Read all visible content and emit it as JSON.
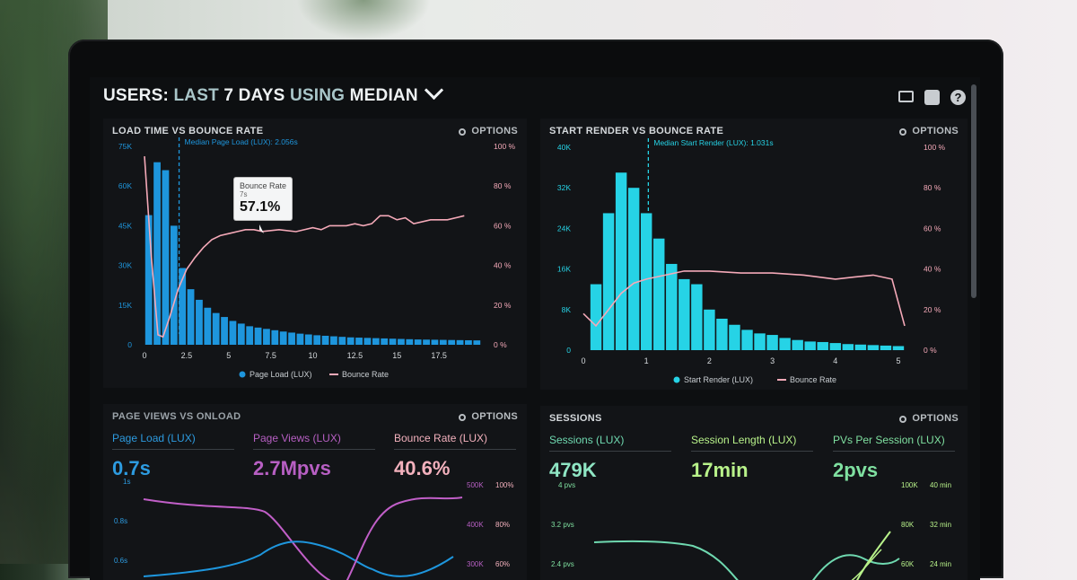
{
  "colors": {
    "blue": "#1e96dd",
    "cyan": "#26d3e6",
    "pink": "#f4a9b8",
    "purple": "#c15fc8",
    "green": "#7fe0a0",
    "lime": "#b8f28a"
  },
  "header": {
    "prefix": "USERS:",
    "w1": "LAST",
    "w2": "7 DAYS",
    "w3": "USING",
    "w4": "MEDIAN",
    "icons": [
      "monitor-icon",
      "chart-icon",
      "help-icon"
    ],
    "help_glyph": "?"
  },
  "options_label": "OPTIONS",
  "panel1": {
    "title": "LOAD TIME VS BOUNCE RATE",
    "marker_label": "Median Page Load (LUX): 2.056s",
    "tooltip": {
      "title": "Bounce Rate",
      "sub": "7s",
      "value": "57.1%"
    },
    "legend": [
      "Page Load (LUX)",
      "Bounce Rate"
    ]
  },
  "panel2": {
    "title": "START RENDER VS BOUNCE RATE",
    "marker_label": "Median Start Render (LUX): 1.031s",
    "legend": [
      "Start Render (LUX)",
      "Bounce Rate"
    ]
  },
  "panel3": {
    "title": "PAGE VIEWS VS ONLOAD",
    "metrics": [
      {
        "label": "Page Load (LUX)",
        "value": "0.7s"
      },
      {
        "label": "Page Views (LUX)",
        "value": "2.7Mpvs"
      },
      {
        "label": "Bounce Rate (LUX)",
        "value": "40.6%"
      }
    ],
    "left_ticks": [
      "1s",
      "0.8s",
      "0.6s"
    ],
    "right_ticks_a": [
      "500K",
      "400K",
      "300K"
    ],
    "right_ticks_b": [
      "100%",
      "80%",
      "60%"
    ]
  },
  "panel4": {
    "title": "SESSIONS",
    "metrics": [
      {
        "label": "Sessions (LUX)",
        "value": "479K"
      },
      {
        "label": "Session Length (LUX)",
        "value": "17min"
      },
      {
        "label": "PVs Per Session (LUX)",
        "value": "2pvs"
      }
    ],
    "left_ticks": [
      "4 pvs",
      "3.2 pvs",
      "2.4 pvs"
    ],
    "right_ticks_a": [
      "100K",
      "80K",
      "60K"
    ],
    "right_ticks_b": [
      "40 min",
      "32 min",
      "24 min"
    ]
  },
  "chart_data": [
    {
      "type": "bar",
      "title": "LOAD TIME VS BOUNCE RATE",
      "x_ticks": [
        "0",
        "2.5",
        "5",
        "7.5",
        "10",
        "12.5",
        "15",
        "17.5"
      ],
      "y_left_ticks": [
        "75K",
        "60K",
        "45K",
        "30K",
        "15K",
        "0"
      ],
      "y_right_ticks": [
        "100 %",
        "80 %",
        "60 %",
        "40 %",
        "20 %",
        "0 %"
      ],
      "xlim": [
        0,
        20
      ],
      "ylim": [
        0,
        75000
      ],
      "y2lim": [
        0,
        100
      ],
      "marker_x": 2.056,
      "series": [
        {
          "name": "Page Load (LUX)",
          "kind": "bar",
          "bin_width": 0.5,
          "x": [
            0,
            0.5,
            1,
            1.5,
            2,
            2.5,
            3,
            3.5,
            4,
            4.5,
            5,
            5.5,
            6,
            6.5,
            7,
            7.5,
            8,
            8.5,
            9,
            9.5,
            10,
            10.5,
            11,
            11.5,
            12,
            12.5,
            13,
            13.5,
            14,
            14.5,
            15,
            15.5,
            16,
            16.5,
            17,
            17.5,
            18,
            18.5,
            19,
            19.5
          ],
          "values": [
            49000,
            69000,
            66000,
            45000,
            29000,
            21000,
            17000,
            14000,
            12000,
            10500,
            9000,
            8000,
            7000,
            6500,
            6000,
            5500,
            5000,
            4600,
            4200,
            3900,
            3600,
            3400,
            3200,
            3000,
            2800,
            2700,
            2600,
            2500,
            2400,
            2300,
            2200,
            2100,
            2000,
            1950,
            1900,
            1850,
            1800,
            1750,
            1700,
            1650
          ]
        },
        {
          "name": "Bounce Rate",
          "kind": "line",
          "axis": "right",
          "x": [
            0,
            0.4,
            0.8,
            1.1,
            1.5,
            2,
            2.5,
            3,
            3.5,
            4,
            4.5,
            5,
            5.5,
            6,
            6.5,
            7,
            8,
            9,
            10,
            10.5,
            11,
            12,
            12.5,
            13,
            13.5,
            14,
            14.5,
            15,
            15.5,
            16,
            17,
            18,
            19
          ],
          "values": [
            95,
            45,
            5,
            4,
            14,
            28,
            38,
            44,
            49,
            53,
            55,
            56,
            57,
            58,
            58,
            57.1,
            58,
            57,
            59,
            58,
            60,
            60,
            61,
            60,
            61,
            65,
            65,
            63,
            64,
            61,
            63,
            63,
            65
          ]
        }
      ]
    },
    {
      "type": "bar",
      "title": "START RENDER VS BOUNCE RATE",
      "x_ticks": [
        "0",
        "1",
        "2",
        "3",
        "4",
        "5"
      ],
      "y_left_ticks": [
        "40K",
        "32K",
        "24K",
        "16K",
        "8K",
        "0"
      ],
      "y_right_ticks": [
        "100 %",
        "80 %",
        "60 %",
        "40 %",
        "20 %",
        "0 %"
      ],
      "xlim": [
        0,
        5.2
      ],
      "ylim": [
        0,
        40000
      ],
      "y2lim": [
        0,
        100
      ],
      "marker_x": 1.031,
      "series": [
        {
          "name": "Start Render (LUX)",
          "kind": "bar",
          "bin_width": 0.2,
          "x": [
            0.1,
            0.3,
            0.5,
            0.7,
            0.9,
            1.1,
            1.3,
            1.5,
            1.7,
            1.9,
            2.1,
            2.3,
            2.5,
            2.7,
            2.9,
            3.1,
            3.3,
            3.5,
            3.7,
            3.9,
            4.1,
            4.3,
            4.5,
            4.7,
            4.9
          ],
          "values": [
            13000,
            27000,
            35000,
            32000,
            27000,
            22000,
            17000,
            14000,
            13000,
            8000,
            6200,
            5000,
            4000,
            3300,
            3000,
            2400,
            2000,
            1700,
            1600,
            1400,
            1200,
            1100,
            1000,
            900,
            800
          ]
        },
        {
          "name": "Bounce Rate",
          "kind": "line",
          "axis": "right",
          "x": [
            0,
            0.2,
            0.4,
            0.6,
            0.8,
            1.0,
            1.3,
            1.6,
            2.0,
            2.5,
            3.0,
            3.5,
            4.0,
            4.3,
            4.6,
            4.9,
            5.1
          ],
          "values": [
            18,
            12,
            20,
            28,
            33,
            35,
            37,
            39,
            39,
            38,
            38,
            37,
            35,
            36,
            37,
            35,
            12
          ]
        }
      ]
    }
  ]
}
